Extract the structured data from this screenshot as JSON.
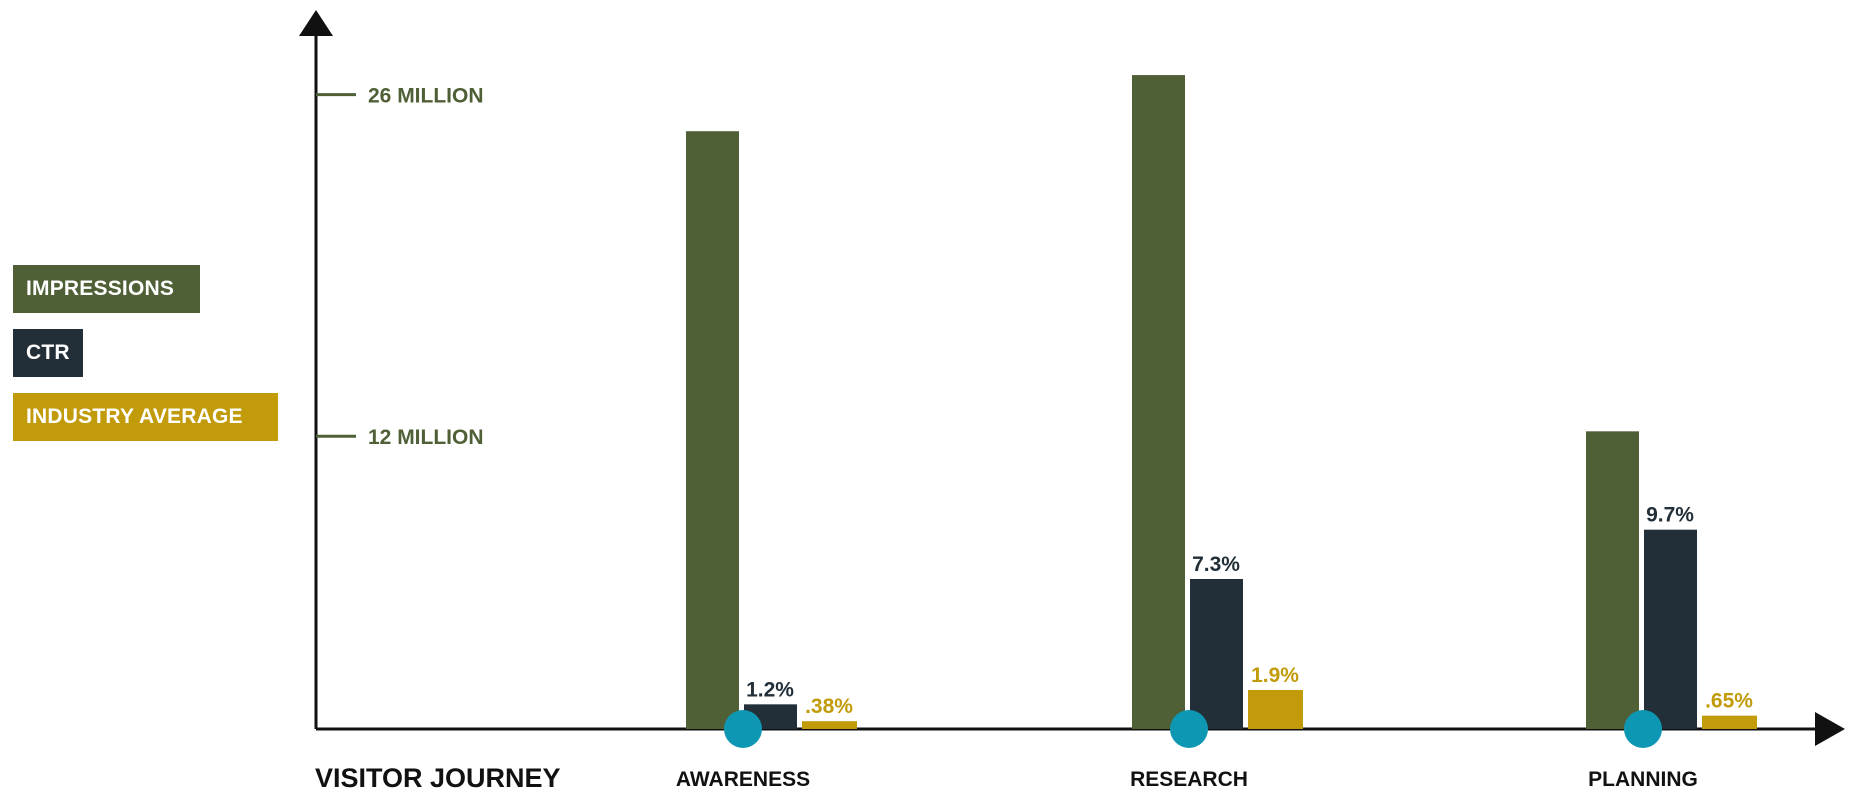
{
  "colors": {
    "impressions": "#4f5f36",
    "ctr": "#222f38",
    "industry": "#c29b0a",
    "marker": "#0e97b3",
    "axis": "#111111",
    "tick_text": "#4f5f36"
  },
  "legend": {
    "impressions": "IMPRESSIONS",
    "ctr": "CTR",
    "industry": "INDUSTRY AVERAGE"
  },
  "chart_data": {
    "type": "bar",
    "xlabel": "VISITOR JOURNEY",
    "categories": [
      "AWARENESS",
      "RESEARCH",
      "PLANNING"
    ],
    "y_ticks": [
      {
        "value": 12,
        "label": "12 MILLION"
      },
      {
        "value": 26,
        "label": "26 MILLION"
      }
    ],
    "y_unit": "million",
    "ylim": [
      0,
      28
    ],
    "pct_scale_max": 14.6,
    "series": [
      {
        "key": "impressions",
        "name": "IMPRESSIONS",
        "values": [
          24.5,
          26.8,
          12.2
        ],
        "labels": [
          "",
          "",
          ""
        ]
      },
      {
        "key": "ctr",
        "name": "CTR",
        "values": [
          1.2,
          7.3,
          9.7
        ],
        "labels": [
          "1.2%",
          "7.3%",
          "9.7%"
        ]
      },
      {
        "key": "industry",
        "name": "INDUSTRY AVERAGE",
        "values": [
          0.38,
          1.9,
          0.65
        ],
        "labels": [
          ".38%",
          "1.9%",
          ".65%"
        ]
      }
    ]
  }
}
